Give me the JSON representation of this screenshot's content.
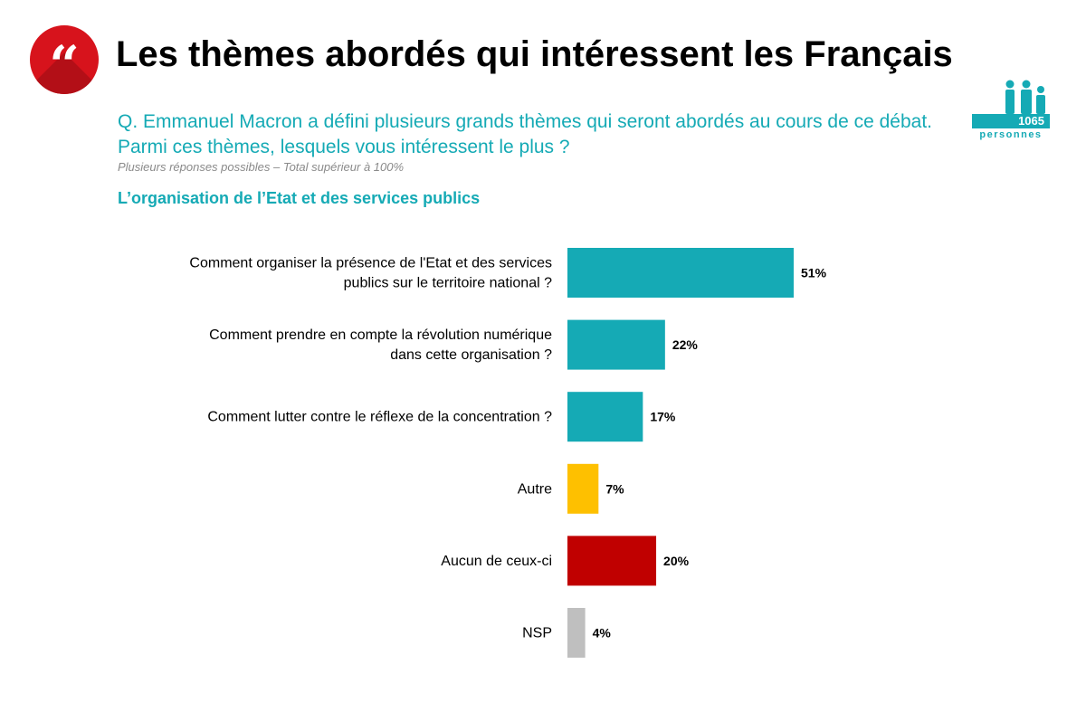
{
  "header": {
    "logo_glyph": "“",
    "title": "Les thèmes abordés qui intéressent les Français",
    "question": "Q. Emmanuel Macron a défini plusieurs grands thèmes qui seront abordés au cours de ce débat. Parmi ces thèmes, lesquels vous intéressent le plus ?",
    "note": "Plusieurs réponses possibles – Total supérieur à 100%",
    "section": "L’organisation de l’Etat et des services publics"
  },
  "sample": {
    "count": "1065",
    "unit": "personnes",
    "icon": "people-icon"
  },
  "colors": {
    "teal": "#15aab5",
    "yellow": "#fec000",
    "red": "#c00000",
    "grey": "#bfbfbf",
    "logo_red": "#d7131c"
  },
  "chart_data": {
    "type": "bar",
    "orientation": "horizontal",
    "categories": [
      [
        "Comment organiser la présence de l'Etat et des services",
        "publics sur le territoire national ?"
      ],
      [
        "Comment prendre en compte la révolution numérique",
        "dans cette organisation ?"
      ],
      [
        "Comment lutter contre le réflexe de la concentration ?"
      ],
      [
        "Autre"
      ],
      [
        "Aucun de ceux-ci"
      ],
      [
        "NSP"
      ]
    ],
    "values": [
      51,
      22,
      17,
      7,
      20,
      4
    ],
    "value_labels": [
      "51%",
      "22%",
      "17%",
      "7%",
      "20%",
      "4%"
    ],
    "bar_colors": [
      "#15aab5",
      "#15aab5",
      "#15aab5",
      "#fec000",
      "#c00000",
      "#bfbfbf"
    ],
    "unit": "%",
    "xlim": [
      0,
      51
    ],
    "grid": false,
    "legend": "none"
  }
}
